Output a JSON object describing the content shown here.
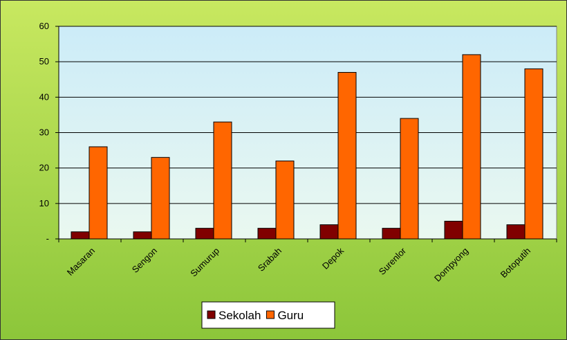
{
  "chart_data": {
    "type": "bar",
    "categories": [
      "Masaran",
      "Sengon",
      "Sumurup",
      "Srabah",
      "Depok",
      "Surenlor",
      "Dompyong",
      "Botoputih"
    ],
    "series": [
      {
        "name": "Sekolah",
        "color": "#800000",
        "values": [
          2,
          2,
          3,
          3,
          4,
          3,
          5,
          4
        ]
      },
      {
        "name": "Guru",
        "color": "#ff6600",
        "values": [
          26,
          23,
          33,
          22,
          47,
          34,
          52,
          48
        ]
      }
    ],
    "ylim": [
      0,
      60
    ],
    "yticks": [
      {
        "value": 0,
        "label": "-"
      },
      10,
      20,
      30,
      40,
      50,
      60
    ],
    "grid": true,
    "legend": "bottom"
  }
}
